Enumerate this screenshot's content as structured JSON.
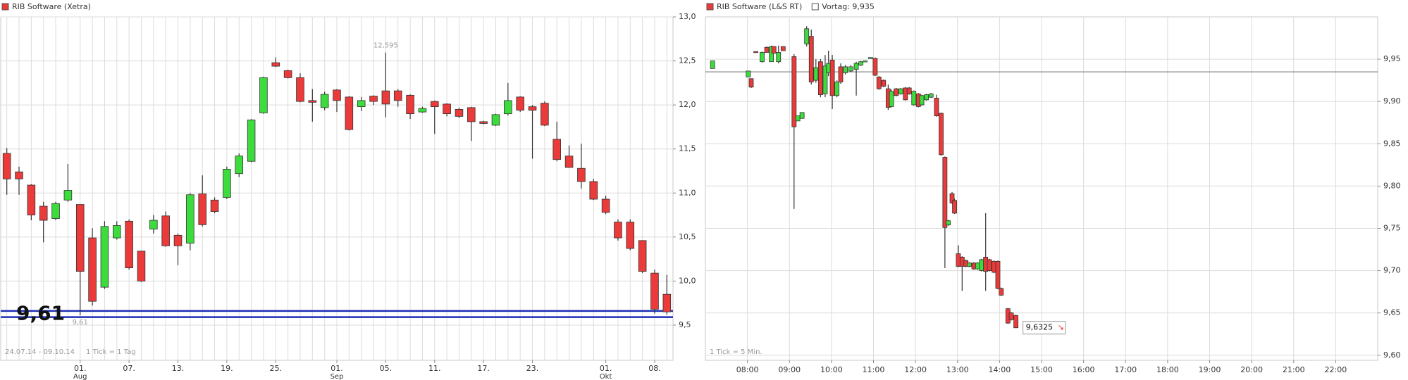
{
  "chart_data": [
    {
      "type": "candlestick",
      "title": "RIB Software (Xetra)",
      "color_up": "#3ddc3d",
      "color_down": "#ea3a3a",
      "categories": [
        null,
        null,
        null,
        null,
        null,
        null,
        "01.",
        null,
        null,
        null,
        "07.",
        null,
        null,
        null,
        "13.",
        null,
        null,
        null,
        "19.",
        null,
        null,
        null,
        "25.",
        null,
        null,
        null,
        null,
        "01.",
        null,
        null,
        null,
        "05.",
        null,
        null,
        null,
        "11.",
        null,
        null,
        null,
        "17.",
        null,
        null,
        null,
        "23.",
        null,
        null,
        null,
        null,
        null,
        "01.",
        null,
        null,
        null,
        "08.",
        null
      ],
      "category_sublabels": [
        null,
        null,
        null,
        null,
        null,
        null,
        "Aug",
        null,
        null,
        null,
        null,
        null,
        null,
        null,
        null,
        null,
        null,
        null,
        null,
        null,
        null,
        null,
        null,
        null,
        null,
        null,
        null,
        "Sep",
        null,
        null,
        null,
        null,
        null,
        null,
        null,
        null,
        null,
        null,
        null,
        null,
        null,
        null,
        null,
        null,
        null,
        null,
        null,
        null,
        null,
        "Okt",
        null,
        null,
        null,
        null,
        null
      ],
      "open": [
        11.45,
        11.24,
        11.09,
        10.85,
        10.71,
        10.92,
        10.87,
        10.49,
        9.93,
        10.49,
        10.68,
        10.34,
        10.59,
        10.74,
        10.52,
        10.43,
        10.99,
        10.92,
        10.95,
        11.22,
        11.36,
        11.91,
        12.48,
        12.39,
        12.31,
        12.05,
        11.97,
        12.17,
        12.09,
        11.98,
        12.1,
        12.16,
        12.16,
        12.11,
        11.92,
        12.04,
        12.01,
        11.95,
        11.97,
        11.81,
        11.77,
        11.9,
        12.09,
        11.98,
        12.02,
        11.61,
        11.42,
        11.28,
        11.13,
        10.93,
        10.67,
        10.67,
        10.46,
        10.09,
        9.85
      ],
      "high": [
        11.51,
        11.3,
        11.1,
        10.9,
        10.9,
        11.33,
        10.87,
        10.6,
        10.68,
        10.68,
        10.7,
        10.34,
        10.75,
        10.79,
        10.54,
        11.0,
        11.2,
        10.95,
        11.3,
        11.45,
        11.84,
        12.32,
        12.54,
        12.4,
        12.36,
        12.18,
        12.15,
        12.18,
        12.1,
        12.09,
        12.11,
        12.595,
        12.18,
        12.12,
        11.98,
        12.05,
        12.02,
        11.97,
        11.98,
        11.82,
        11.9,
        12.25,
        12.1,
        12.0,
        12.04,
        11.81,
        11.54,
        11.56,
        11.16,
        10.97,
        10.7,
        10.7,
        10.46,
        10.13,
        10.07
      ],
      "low": [
        10.98,
        10.98,
        10.69,
        10.44,
        10.69,
        10.9,
        9.61,
        9.72,
        9.91,
        10.47,
        10.13,
        9.99,
        10.54,
        10.39,
        10.18,
        10.35,
        10.62,
        10.77,
        10.93,
        11.18,
        11.35,
        11.9,
        12.43,
        12.3,
        12.03,
        11.81,
        11.94,
        11.92,
        11.71,
        11.93,
        12.0,
        11.86,
        11.98,
        11.84,
        11.91,
        11.67,
        11.87,
        11.85,
        11.59,
        11.78,
        11.76,
        11.88,
        11.92,
        11.39,
        11.76,
        11.36,
        11.29,
        11.05,
        10.92,
        10.76,
        10.46,
        10.35,
        10.09,
        9.63,
        9.62
      ],
      "close": [
        11.16,
        11.16,
        10.75,
        10.69,
        10.88,
        11.03,
        10.11,
        9.77,
        10.62,
        10.63,
        10.15,
        10.0,
        10.69,
        10.4,
        10.4,
        10.98,
        10.64,
        10.79,
        11.27,
        11.42,
        11.83,
        12.31,
        12.44,
        12.31,
        12.04,
        12.03,
        12.12,
        12.05,
        11.72,
        12.05,
        12.04,
        12.01,
        12.05,
        11.9,
        11.96,
        11.98,
        11.9,
        11.87,
        11.81,
        11.79,
        11.89,
        12.05,
        11.94,
        11.94,
        11.77,
        11.38,
        11.29,
        11.13,
        10.93,
        10.78,
        10.49,
        10.37,
        10.11,
        9.68,
        9.65
      ],
      "ylim": [
        9.1,
        13.0
      ],
      "yticks": [
        {
          "value": 9.5,
          "label": "9,5"
        },
        {
          "value": 10,
          "label": "10,0"
        },
        {
          "value": 10.5,
          "label": "10,5"
        },
        {
          "value": 11,
          "label": "11,0"
        },
        {
          "value": 11.5,
          "label": "11,5"
        },
        {
          "value": 12,
          "label": "12,0"
        },
        {
          "value": 12.5,
          "label": "12,5"
        },
        {
          "value": 13,
          "label": "13,0"
        }
      ],
      "grid": true,
      "high_label": "12,595",
      "low_label": "9,61",
      "support_label": "9,61",
      "support_lines": [
        9.66,
        9.59
      ],
      "support_color": "#1f2fb5",
      "date_range": "24.07.14 - 09.10.14",
      "tick_note": "1 Tick = 1 Tag"
    },
    {
      "type": "candlestick",
      "title": "RIB Software (L&S RT)",
      "color_up": "#3ddc3d",
      "color_down": "#ea3a3a",
      "x": [
        7.17,
        8.02,
        8.09,
        8.2,
        8.35,
        8.46,
        8.57,
        8.63,
        8.74,
        8.85,
        9.11,
        9.2,
        9.3,
        9.41,
        9.52,
        9.63,
        9.74,
        9.85,
        9.93,
        10.02,
        10.13,
        10.22,
        10.33,
        10.46,
        10.59,
        10.7,
        10.8,
        10.93,
        11.04,
        11.13,
        11.24,
        11.35,
        11.43,
        11.54,
        11.65,
        11.76,
        11.85,
        11.96,
        12.07,
        12.15,
        12.26,
        12.37,
        12.5,
        12.61,
        12.7,
        12.78,
        12.87,
        12.93,
        13.02,
        13.11,
        13.2,
        13.28,
        13.39,
        13.48,
        13.57,
        13.67,
        13.76,
        13.87,
        13.96,
        14.04,
        14.2,
        14.28,
        14.39
      ],
      "open": [
        9.939,
        9.929,
        9.927,
        9.959,
        9.947,
        9.964,
        9.947,
        9.965,
        9.947,
        9.965,
        9.953,
        9.877,
        9.88,
        9.968,
        9.977,
        9.925,
        9.947,
        9.909,
        9.934,
        9.949,
        9.907,
        9.941,
        9.934,
        9.936,
        9.938,
        9.943,
        9.948,
        9.952,
        9.951,
        9.929,
        9.925,
        9.915,
        9.894,
        9.915,
        9.909,
        9.916,
        9.916,
        9.896,
        9.909,
        9.896,
        9.902,
        9.905,
        9.904,
        9.886,
        9.834,
        9.754,
        9.791,
        9.783,
        9.72,
        9.716,
        9.712,
        9.705,
        9.709,
        9.702,
        9.7,
        9.716,
        9.713,
        9.711,
        9.711,
        9.679,
        9.655,
        9.65,
        9.647
      ],
      "high": [
        9.948,
        9.936,
        9.927,
        9.959,
        9.959,
        9.965,
        9.966,
        9.965,
        9.966,
        9.965,
        9.956,
        9.883,
        9.887,
        9.989,
        9.985,
        9.95,
        9.95,
        9.955,
        9.96,
        9.955,
        9.925,
        9.945,
        9.943,
        9.943,
        9.947,
        9.948,
        9.948,
        9.952,
        9.952,
        9.93,
        9.926,
        9.92,
        9.914,
        9.916,
        9.916,
        9.917,
        9.917,
        9.913,
        9.91,
        9.908,
        9.909,
        9.91,
        9.908,
        9.887,
        9.835,
        9.76,
        9.793,
        9.785,
        9.73,
        9.717,
        9.713,
        9.71,
        9.71,
        9.71,
        9.714,
        9.768,
        9.714,
        9.712,
        9.712,
        9.68,
        9.656,
        9.651,
        9.648
      ],
      "low": [
        9.939,
        9.929,
        9.916,
        9.958,
        9.946,
        9.958,
        9.947,
        9.957,
        9.945,
        9.96,
        9.773,
        9.877,
        9.88,
        9.965,
        9.92,
        9.922,
        9.905,
        9.905,
        9.93,
        9.891,
        9.905,
        9.921,
        9.932,
        9.935,
        9.907,
        9.942,
        9.948,
        9.952,
        9.93,
        9.914,
        9.917,
        9.89,
        9.893,
        9.906,
        9.908,
        9.901,
        9.908,
        9.895,
        9.893,
        9.895,
        9.901,
        9.904,
        9.882,
        9.836,
        9.703,
        9.753,
        9.779,
        9.767,
        9.704,
        9.676,
        9.704,
        9.704,
        9.701,
        9.701,
        9.699,
        9.676,
        9.699,
        9.697,
        9.678,
        9.67,
        9.637,
        9.641,
        9.632
      ],
      "close": [
        9.948,
        9.936,
        9.917,
        9.958,
        9.958,
        9.958,
        9.965,
        9.957,
        9.958,
        9.96,
        9.87,
        9.883,
        9.887,
        9.986,
        9.923,
        9.94,
        9.908,
        9.942,
        9.945,
        9.907,
        9.923,
        9.923,
        9.941,
        9.941,
        9.945,
        9.947,
        9.948,
        9.952,
        9.931,
        9.915,
        9.918,
        9.893,
        9.912,
        9.907,
        9.915,
        9.902,
        9.909,
        9.912,
        9.894,
        9.907,
        9.908,
        9.909,
        9.883,
        9.837,
        9.751,
        9.759,
        9.78,
        9.768,
        9.705,
        9.705,
        9.705,
        9.709,
        9.702,
        9.709,
        9.713,
        9.699,
        9.7,
        9.698,
        9.679,
        9.671,
        9.638,
        9.642,
        9.6325
      ],
      "xlim": [
        7,
        23
      ],
      "xticks": [
        {
          "value": 8,
          "label": "08:00"
        },
        {
          "value": 9,
          "label": "09:00"
        },
        {
          "value": 10,
          "label": "10:00"
        },
        {
          "value": 11,
          "label": "11:00"
        },
        {
          "value": 12,
          "label": "12:00"
        },
        {
          "value": 13,
          "label": "13:00"
        },
        {
          "value": 14,
          "label": "14:00"
        },
        {
          "value": 15,
          "label": "15:00"
        },
        {
          "value": 16,
          "label": "16:00"
        },
        {
          "value": 17,
          "label": "17:00"
        },
        {
          "value": 18,
          "label": "18:00"
        },
        {
          "value": 19,
          "label": "19:00"
        },
        {
          "value": 20,
          "label": "20:00"
        },
        {
          "value": 21,
          "label": "21:00"
        },
        {
          "value": 22,
          "label": "22:00"
        }
      ],
      "ylim": [
        9.594,
        10.0
      ],
      "yticks": [
        {
          "value": 9.6,
          "label": "9,60"
        },
        {
          "value": 9.65,
          "label": "9,65"
        },
        {
          "value": 9.7,
          "label": "9,70"
        },
        {
          "value": 9.75,
          "label": "9,75"
        },
        {
          "value": 9.8,
          "label": "9,80"
        },
        {
          "value": 9.85,
          "label": "9,85"
        },
        {
          "value": 9.9,
          "label": "9,90"
        },
        {
          "value": 9.95,
          "label": "9,95"
        }
      ],
      "grid": true,
      "reference": 9.935,
      "reference_label": "Vortag: 9,935",
      "last": 9.6325,
      "last_label": "9,6325",
      "tick_note": "1 Tick = 5 Min."
    }
  ]
}
